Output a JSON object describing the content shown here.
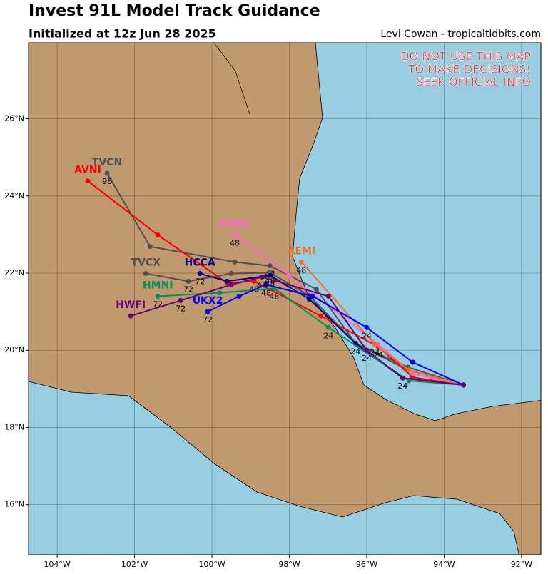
{
  "header": {
    "title": "Invest 91L Model Track Guidance",
    "subtitle": "Initialized at 12z Jun 28 2025",
    "credit": "Levi Cowan - tropicaltidbits.com"
  },
  "warning": [
    "DO NOT USE THIS MAP",
    "TO MAKE DECISIONS!",
    "SEEK OFFICIAL INFO"
  ],
  "map": {
    "lonlim": [
      -104.74,
      -91.5
    ],
    "latlim": [
      14.7,
      27.97
    ],
    "lon_ticks": [
      {
        "value": -104,
        "label": "104°W"
      },
      {
        "value": -102,
        "label": "102°W"
      },
      {
        "value": -100,
        "label": "100°W"
      },
      {
        "value": -98,
        "label": "98°W"
      },
      {
        "value": -96,
        "label": "96°W"
      },
      {
        "value": -94,
        "label": "94°W"
      },
      {
        "value": -92,
        "label": "92°W"
      }
    ],
    "lat_ticks": [
      {
        "value": 16,
        "label": "16°N"
      },
      {
        "value": 18,
        "label": "18°N"
      },
      {
        "value": 20,
        "label": "20°N"
      },
      {
        "value": 22,
        "label": "22°N"
      },
      {
        "value": 24,
        "label": "24°N"
      },
      {
        "value": 26,
        "label": "26°N"
      }
    ]
  },
  "tracks": [
    {
      "name": "TVCN",
      "color": "#505050",
      "points": [
        [
          -93.5,
          19.1
        ],
        [
          -94.93,
          19.56
        ],
        [
          -96.29,
          20.18
        ],
        [
          -97.3,
          21.58
        ],
        [
          -98.5,
          22.19
        ],
        [
          -99.41,
          22.29
        ],
        [
          -101.6,
          22.69
        ],
        [
          -102.71,
          24.59
        ]
      ],
      "hour_labels": [
        {
          "text": "24",
          "point": 2
        },
        {
          "text": "48",
          "point": 4
        },
        {
          "text": "96",
          "point": 7
        }
      ]
    },
    {
      "name": "TVCX",
      "color": "#505050",
      "points": [
        [
          -93.5,
          19.1
        ],
        [
          -94.93,
          19.49
        ],
        [
          -96.29,
          20.18
        ],
        [
          -97.49,
          21.42
        ],
        [
          -98.5,
          22.01
        ],
        [
          -99.5,
          21.99
        ],
        [
          -100.61,
          21.79
        ],
        [
          -101.71,
          21.99
        ]
      ],
      "hour_labels": [
        {
          "text": "48",
          "point": 4
        },
        {
          "text": "72",
          "point": 6
        }
      ]
    },
    {
      "name": "AVNI",
      "color": "#ff0000",
      "points": [
        [
          -93.5,
          19.1
        ],
        [
          -94.81,
          19.3
        ],
        [
          -95.7,
          20.09
        ],
        [
          -97.19,
          20.89
        ],
        [
          -98.91,
          21.79
        ],
        [
          -99.61,
          21.75
        ],
        [
          -101.4,
          22.99
        ],
        [
          -103.21,
          24.39
        ]
      ],
      "hour_labels": [
        {
          "text": "24",
          "point": 2
        },
        {
          "text": "48",
          "point": 4
        }
      ]
    },
    {
      "name": "HCCA",
      "color": "#000080",
      "points": [
        [
          -93.5,
          19.1
        ],
        [
          -95.07,
          19.28
        ],
        [
          -96.29,
          20.18
        ],
        [
          -97.49,
          21.33
        ],
        [
          -98.5,
          21.94
        ],
        [
          -99.61,
          21.79
        ],
        [
          -100.31,
          21.99
        ]
      ],
      "hour_labels": [
        {
          "text": "24",
          "point": 1
        },
        {
          "text": "48",
          "point": 4
        },
        {
          "text": "72",
          "point": 6
        }
      ]
    },
    {
      "name": "CEM2",
      "color": "#ff66cc",
      "points": [
        [
          -93.5,
          19.1
        ],
        [
          -94.81,
          19.39
        ],
        [
          -95.7,
          20.15
        ],
        [
          -98.01,
          21.94
        ],
        [
          -99.41,
          22.99
        ]
      ],
      "hour_labels": [
        {
          "text": "48",
          "point": 4
        }
      ]
    },
    {
      "name": "AEMI",
      "color": "#f07020",
      "points": [
        [
          -93.5,
          19.1
        ],
        [
          -94.91,
          19.49
        ],
        [
          -95.79,
          20.15
        ],
        [
          -97.69,
          22.29
        ]
      ],
      "hour_labels": [
        {
          "text": "24",
          "point": 2
        },
        {
          "text": "48",
          "point": 3
        }
      ]
    },
    {
      "name": "HMNI",
      "color": "#009060",
      "points": [
        [
          -93.5,
          19.1
        ],
        [
          -94.91,
          19.21
        ],
        [
          -96.99,
          20.59
        ],
        [
          -98.39,
          21.6
        ],
        [
          -99.8,
          21.49
        ],
        [
          -101.4,
          21.4
        ]
      ],
      "hour_labels": [
        {
          "text": "24",
          "point": 2
        },
        {
          "text": "48",
          "point": 3
        },
        {
          "text": "72",
          "point": 5
        }
      ]
    },
    {
      "name": "UKX2",
      "color": "#0000ff",
      "points": [
        [
          -93.5,
          19.1
        ],
        [
          -94.81,
          19.69
        ],
        [
          -96.0,
          20.59
        ],
        [
          -97.4,
          21.4
        ],
        [
          -98.6,
          21.7
        ],
        [
          -99.3,
          21.4
        ],
        [
          -100.11,
          21.0
        ]
      ],
      "hour_labels": [
        {
          "text": "24",
          "point": 2
        },
        {
          "text": "48",
          "point": 4
        },
        {
          "text": "72",
          "point": 6
        }
      ]
    },
    {
      "name": "HWFI",
      "color": "#660077",
      "points": [
        [
          -93.5,
          19.1
        ],
        [
          -95.07,
          19.28
        ],
        [
          -96.0,
          20.0
        ],
        [
          -96.99,
          21.4
        ],
        [
          -98.71,
          21.9
        ],
        [
          -99.5,
          21.7
        ],
        [
          -100.81,
          21.29
        ],
        [
          -102.1,
          20.89
        ]
      ],
      "hour_labels": [
        {
          "text": "24",
          "point": 2
        },
        {
          "text": "48",
          "point": 4
        },
        {
          "text": "72",
          "point": 6
        }
      ]
    }
  ]
}
